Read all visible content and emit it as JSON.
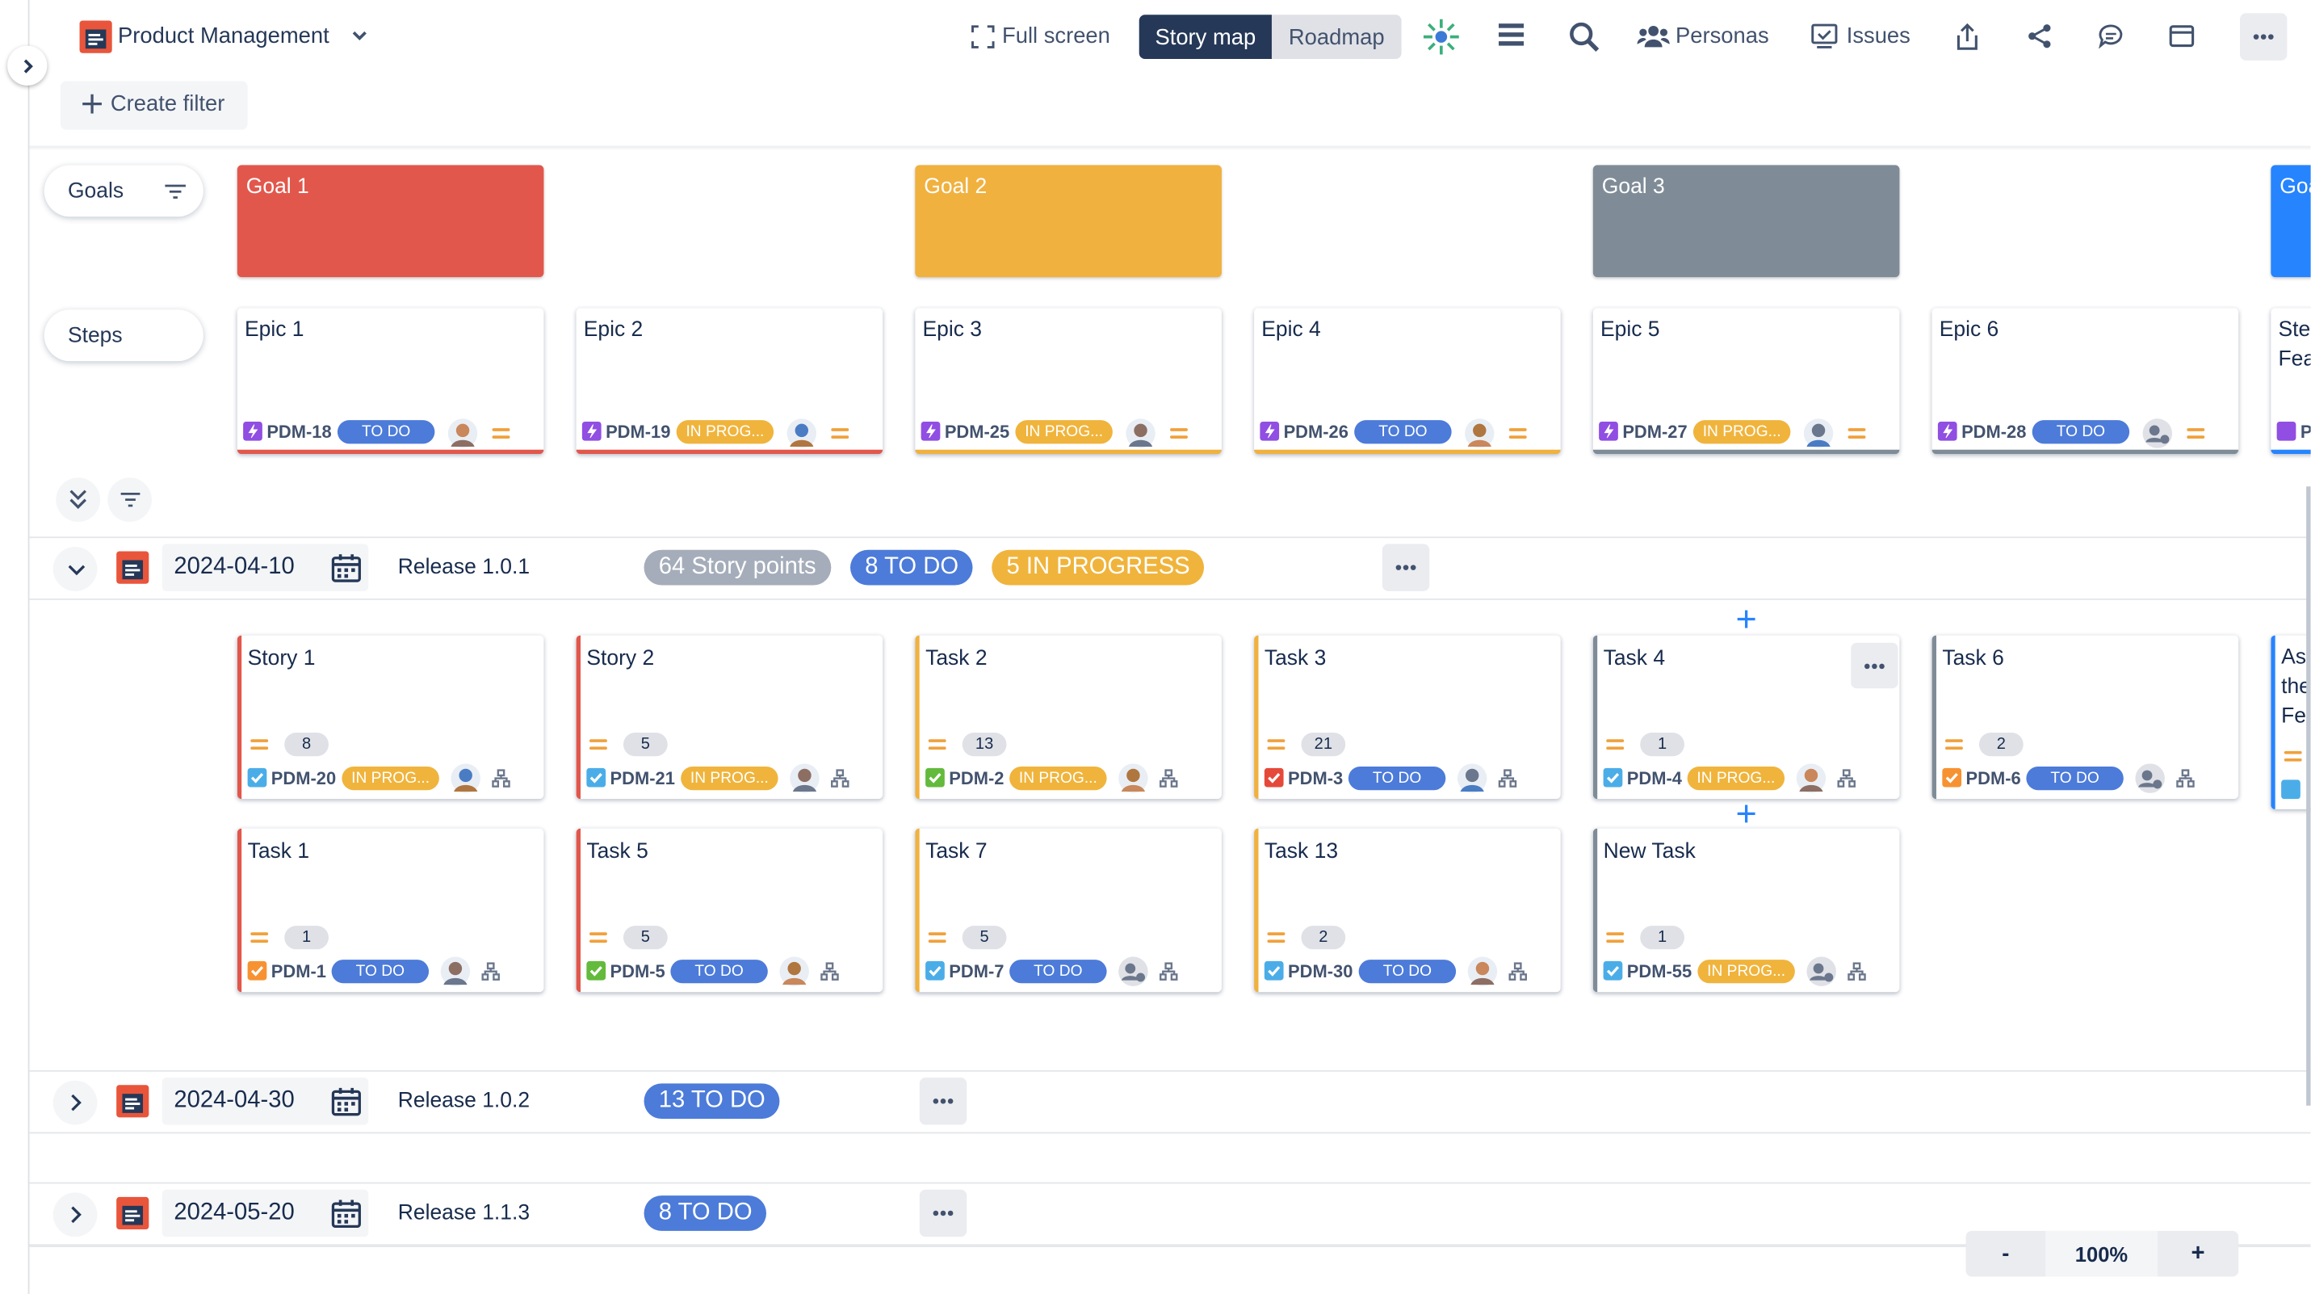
{
  "header": {
    "project": "Product Management",
    "full_screen": "Full screen",
    "story_map": "Story map",
    "roadmap": "Roadmap",
    "personas": "Personas",
    "issues": "Issues",
    "create_filter": "Create filter"
  },
  "rows": {
    "goals": "Goals",
    "steps": "Steps"
  },
  "goals": [
    {
      "title": "Goal 1",
      "color": "#e2574c",
      "col": 0
    },
    {
      "title": "Goal 2",
      "color": "#f0b13f",
      "col": 2
    },
    {
      "title": "Goal 3",
      "color": "#7f8c97",
      "col": 4
    },
    {
      "title": "Goa",
      "color": "#2684ff",
      "col": 6
    }
  ],
  "epics": [
    {
      "title": "Epic 1",
      "key": "PDM-18",
      "status": "TO DO",
      "status_color": "#4c7bd9",
      "color": "#e2574c"
    },
    {
      "title": "Epic 2",
      "key": "PDM-19",
      "status": "IN PROG...",
      "status_color": "#f0b43c",
      "color": "#e2574c"
    },
    {
      "title": "Epic 3",
      "key": "PDM-25",
      "status": "IN PROG...",
      "status_color": "#f0b43c",
      "color": "#f0b13f"
    },
    {
      "title": "Epic 4",
      "key": "PDM-26",
      "status": "TO DO",
      "status_color": "#4c7bd9",
      "color": "#f0b13f"
    },
    {
      "title": "Epic 5",
      "key": "PDM-27",
      "status": "IN PROG...",
      "status_color": "#f0b43c",
      "color": "#7f8c97"
    },
    {
      "title": "Epic 6",
      "key": "PDM-28",
      "status": "TO DO",
      "status_color": "#4c7bd9",
      "color": "#7f8c97"
    }
  ],
  "partial": {
    "epic": [
      "Ste",
      "Fea"
    ],
    "key": "P",
    "card": [
      "As",
      "the",
      "Fe"
    ]
  },
  "releases": [
    {
      "date": "2024-04-10",
      "name": "Release 1.0.1",
      "badges": [
        {
          "text": "64 Story points",
          "color": "#a5adba"
        },
        {
          "text": "8 TO DO",
          "color": "#4c7bd9"
        },
        {
          "text": "5 IN PROGRESS",
          "color": "#f0b43c"
        }
      ],
      "rows": [
        [
          {
            "title": "Story 1",
            "points": "8",
            "key": "PDM-20",
            "status": "IN PROG...",
            "status_color": "#f0b43c",
            "icon": "#4bade8"
          },
          {
            "title": "Story 2",
            "points": "5",
            "key": "PDM-21",
            "status": "IN PROG...",
            "status_color": "#f0b43c",
            "icon": "#4bade8"
          },
          {
            "title": "Task 2",
            "points": "13",
            "key": "PDM-2",
            "status": "IN PROG...",
            "status_color": "#f0b43c",
            "icon": "#63ba3c"
          },
          {
            "title": "Task 3",
            "points": "21",
            "key": "PDM-3",
            "status": "TO DO",
            "status_color": "#4c7bd9",
            "icon": "#e5493a"
          },
          {
            "title": "Task 4",
            "points": "1",
            "key": "PDM-4",
            "status": "IN PROG...",
            "status_color": "#f0b43c",
            "icon": "#4bade8"
          },
          {
            "title": "Task 6",
            "points": "2",
            "key": "PDM-6",
            "status": "TO DO",
            "status_color": "#4c7bd9",
            "icon": "#f79232"
          }
        ],
        [
          {
            "title": "Task 1",
            "points": "1",
            "key": "PDM-1",
            "status": "TO DO",
            "status_color": "#4c7bd9",
            "icon": "#f79232"
          },
          {
            "title": "Task 5",
            "points": "5",
            "key": "PDM-5",
            "status": "TO DO",
            "status_color": "#4c7bd9",
            "icon": "#63ba3c"
          },
          {
            "title": "Task 7",
            "points": "5",
            "key": "PDM-7",
            "status": "TO DO",
            "status_color": "#4c7bd9",
            "icon": "#4bade8"
          },
          {
            "title": "Task 13",
            "points": "2",
            "key": "PDM-30",
            "status": "TO DO",
            "status_color": "#4c7bd9",
            "icon": "#4bade8"
          },
          {
            "title": "New Task",
            "points": "1",
            "key": "PDM-55",
            "status": "IN PROG...",
            "status_color": "#f0b43c",
            "icon": "#4bade8"
          }
        ]
      ]
    },
    {
      "date": "2024-04-30",
      "name": "Release 1.0.2",
      "badges": [
        {
          "text": "13 TO DO",
          "color": "#4c7bd9"
        }
      ],
      "rows": []
    },
    {
      "date": "2024-05-20",
      "name": "Release 1.1.3",
      "badges": [
        {
          "text": "8 TO DO",
          "color": "#4c7bd9"
        }
      ],
      "rows": []
    }
  ],
  "zoom": {
    "minus": "-",
    "level": "100%",
    "plus": "+"
  }
}
